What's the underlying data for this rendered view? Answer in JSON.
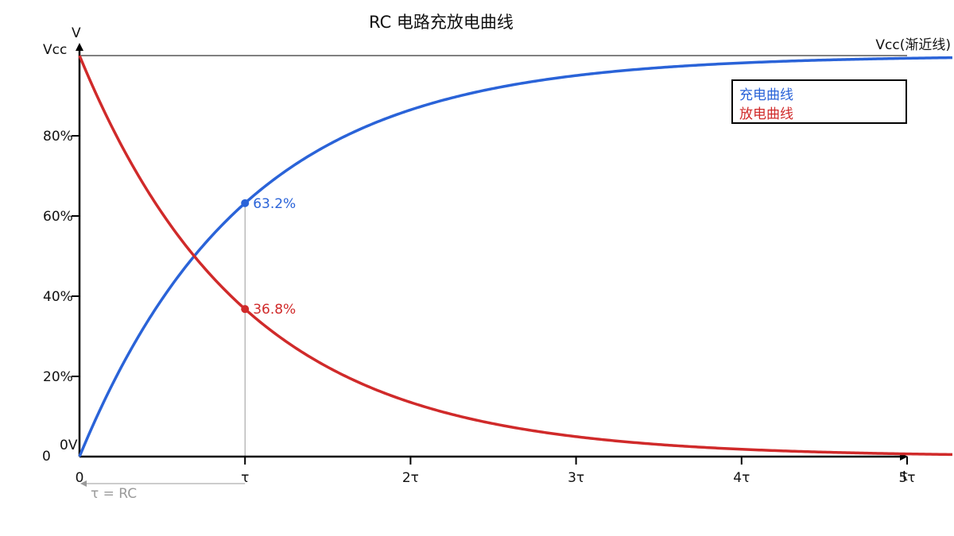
{
  "chart_data": {
    "type": "line",
    "title": "RC 电路充放电曲线",
    "ylabel": "V",
    "xlabel": "t",
    "xlim": [
      0,
      5
    ],
    "ylim": [
      0,
      100
    ],
    "x_ticks": [
      0,
      1,
      2,
      3,
      4,
      5
    ],
    "x_tick_labels": [
      "0",
      "τ",
      "2τ",
      "3τ",
      "4τ",
      "5τ"
    ],
    "y_ticks": [
      0,
      20,
      40,
      60,
      80,
      100
    ],
    "y_tick_labels": [
      "0",
      "20%",
      "40%",
      "60%",
      "80%",
      "Vcc"
    ],
    "zero_label": "0V",
    "asymptote": {
      "value": 100,
      "label": "Vcc(渐近线)"
    },
    "tau_note": "τ = RC",
    "legend_position": "top-right",
    "series": [
      {
        "name": "充电曲线",
        "color": "#2a63d8",
        "formula": "100*(1-exp(-t))"
      },
      {
        "name": "放电曲线",
        "color": "#d02a2a",
        "formula": "100*exp(-t)"
      }
    ],
    "annotations": [
      {
        "x": 1,
        "y": 63.2,
        "label": "63.2%",
        "color": "#2a63d8"
      },
      {
        "x": 1,
        "y": 36.8,
        "label": "36.8%",
        "color": "#d02a2a"
      }
    ]
  }
}
